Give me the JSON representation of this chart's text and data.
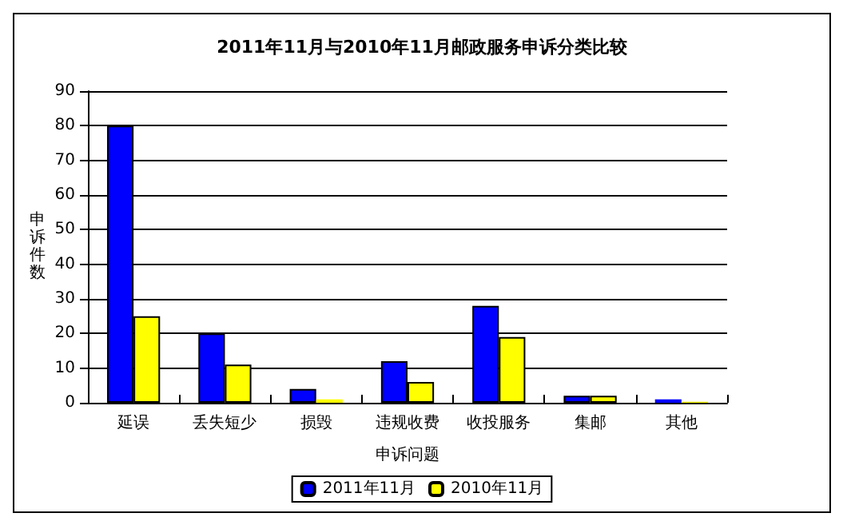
{
  "chart_data": {
    "type": "bar",
    "title": "2011年11月与2010年11月邮政服务申诉分类比较",
    "xlabel": "申诉问题",
    "ylabel": "申诉件数",
    "categories": [
      "延误",
      "丢失短少",
      "损毁",
      "违规收费",
      "收投服务",
      "集邮",
      "其他"
    ],
    "series": [
      {
        "name": "2011年11月",
        "color": "#0000ff",
        "values": [
          80,
          20,
          4,
          12,
          28,
          2,
          1
        ]
      },
      {
        "name": "2010年11月",
        "color": "#ffff00",
        "values": [
          25,
          11,
          1,
          6,
          19,
          2,
          0.3
        ]
      }
    ],
    "ylim": [
      0,
      90
    ],
    "yticks": [
      0,
      10,
      20,
      30,
      40,
      50,
      60,
      70,
      80,
      90
    ],
    "grid": "y",
    "legend": "bottom"
  }
}
